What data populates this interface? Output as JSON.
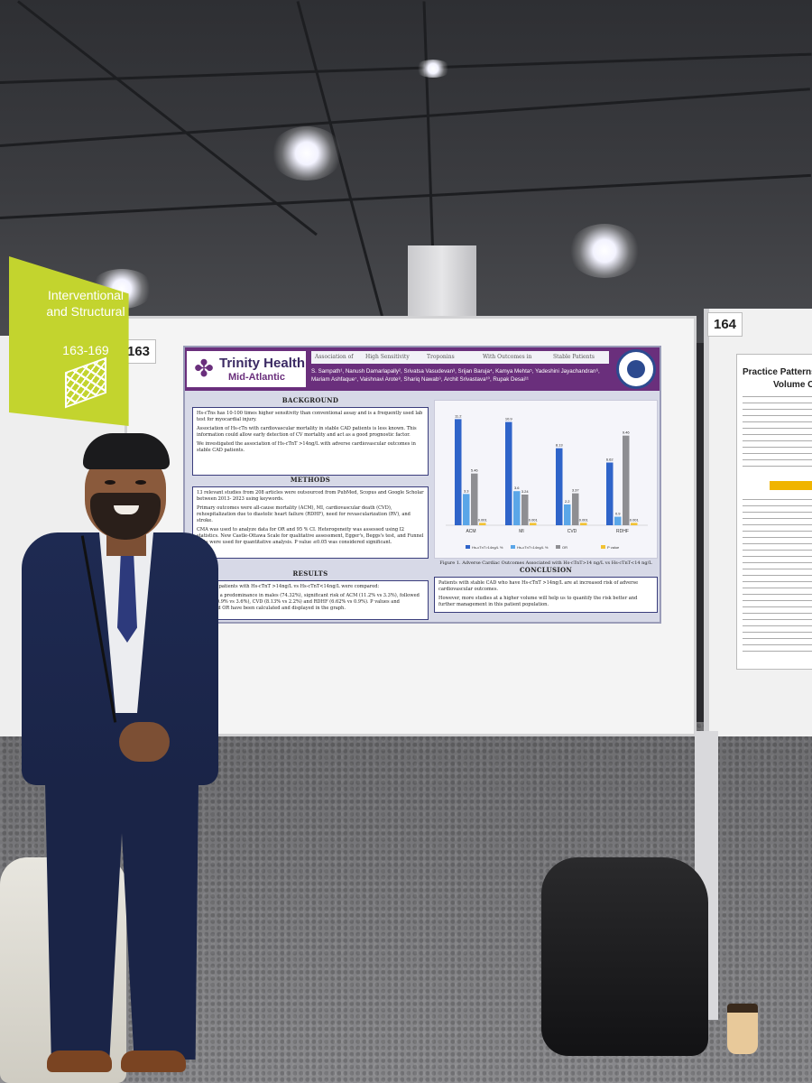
{
  "scene": {
    "description_label": "Conference poster session",
    "colors": {
      "poster_purple": "#6a2f7c",
      "chart_blue": "#2f64c9",
      "chart_lightblue": "#5aa6e8",
      "chart_gray": "#8e8e92",
      "chart_yellow": "#f2c233",
      "sign_green": "#c3d42e"
    }
  },
  "sign": {
    "title": "Interventional and Structural",
    "range": "163-169"
  },
  "boards": {
    "left_number": "163",
    "right_number": "164"
  },
  "poster": {
    "logo_name": "Trinity Health",
    "logo_sub": "Mid-Atlantic",
    "title_words": [
      "Association of",
      "High Sensitivity",
      "Troponins",
      "With Outcomes in",
      "Stable Patients"
    ],
    "authors": "S. Sampath¹, Nanush Damarlapally², Srivatsa Vasudevan³, Srijan Baruja⁴, Kamya Mehta⁵, Yadeshini Jayachandran⁶, Mariam Ashfaque⁷, Vaishnavi Arote⁸, Shariq Nawab⁹, Archit Srivastava¹⁰, Rupak Desai¹¹",
    "sections": {
      "background": {
        "head": "BACKGROUND",
        "items": [
          "Hs-cTns has 10-100 times higher sensitivity than conventional assay and is a frequently used lab test for myocardial injury.",
          "Association of Hs-cTn with cardiovascular mortality in stable CAD patients is less known. This information could allow early detection of CV mortality and act as a good prognostic factor.",
          "We investigated the association of Hs-cTnT >14ng/L with adverse cardiovascular outcomes in stable CAD patients."
        ]
      },
      "methods": {
        "head": "METHODS",
        "items": [
          "13 relevant studies from 208 articles were outsourced from PubMed, Scopus and Google Scholar between 2013- 2023 using keywords.",
          "Primary outcomes were all-cause mortality (ACM), MI, cardiovascular death (CVD), rehospitalization due to diastolic heart failure (RDHF), need for revascularization (RV), and stroke.",
          "CMA was used to analyze data for OR and 95 % CI. Heterogeneity was assessed using I2 statistics. New Castle-Ottawa Scale for qualitative assessment, Egger's, Beggs's test, and Funnel plots were used for quantitative analysis. P value ≤0.05 was considered significant."
        ]
      },
      "results": {
        "head": "RESULTS",
        "items": [
          "MACE in patients with Hs-cTnT >14ng/L vs Hs-cTnT<14ng/L were compared:",
          "We noted a predominance in males (74.32%), significant risk of ACM (11.2% vs 3.3%), followed by MI (10.9% vs 3.6%), CVD (8.13% vs 2.2%) and RDHF (6.62% vs 0.9%). P values and calculated OR have been calculated and displayed in the graph."
        ]
      },
      "conclusion": {
        "head": "CONCLUSION",
        "items": [
          "Patients with stable CAD who have Hs-cTnT >14ng/L are at increased risk of adverse cardiovascular outcomes.",
          "However, more studies at a higher volume will help us to quantify the risk better and further management in this patient population."
        ]
      }
    },
    "figure_caption": "Figure 1. Adverse Cardiac Outcomes Associated with Hs-cTnT>14 ng/L vs Hs-cTnT<14 ng/L"
  },
  "chart_data": {
    "type": "bar",
    "title": "",
    "categories": [
      "ACM",
      "MI",
      "CVD",
      "RDHF"
    ],
    "series": [
      {
        "name": "Hs-cTnT>14ng/L %",
        "color": "#2f64c9",
        "values": [
          11.2,
          10.9,
          8.13,
          6.62
        ]
      },
      {
        "name": "Hs-cTnT<14ng/L %",
        "color": "#5aa6e8",
        "values": [
          3.3,
          3.6,
          2.2,
          0.9
        ]
      },
      {
        "name": "OR",
        "color": "#8e8e92",
        "values": [
          5.46,
          3.24,
          3.37,
          9.46
        ]
      },
      {
        "name": "P value",
        "color": "#f2c233",
        "values": [
          0.001,
          0.001,
          0.001,
          0.001
        ]
      }
    ],
    "value_labels": [
      [
        "11.2",
        "3.3",
        "5.46",
        "0.001"
      ],
      [
        "10.9",
        "3.6",
        "3.24",
        "0.001"
      ],
      [
        "8.13",
        "2.2",
        "3.37",
        "0.001"
      ],
      [
        "6.62",
        "0.9",
        "9.46",
        "0.001"
      ]
    ],
    "ylim": [
      0,
      12
    ],
    "xlabel": "",
    "ylabel": "",
    "legend": "bottom"
  },
  "right_poster": {
    "title": "Practice Patterns",
    "subtitle": "Volume CTO"
  }
}
